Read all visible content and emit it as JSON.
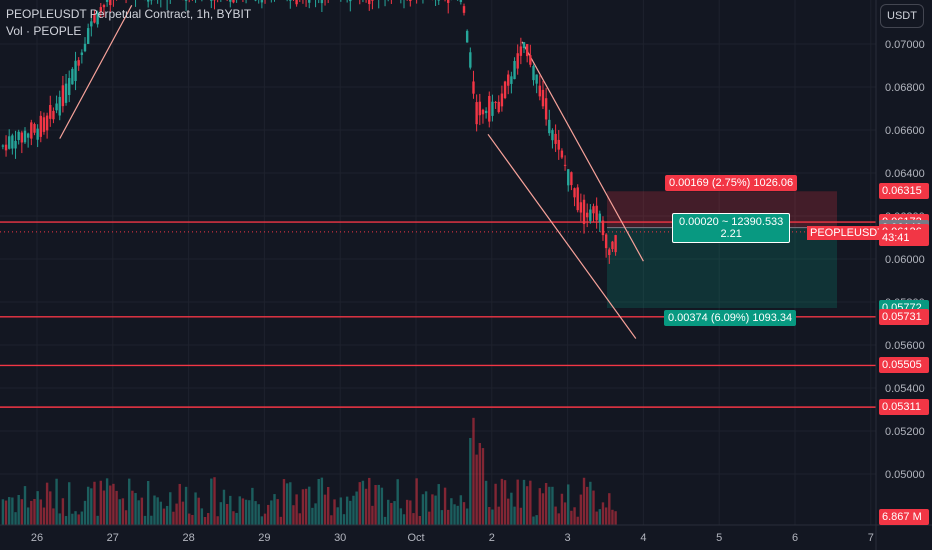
{
  "header": {
    "title": "PEOPLEUSDT Perpetual Contract, 1h, BYBIT",
    "volume_label": "Vol · PEOPLE"
  },
  "currency_button": "USDT",
  "colors": {
    "background": "#131722",
    "up": "#26a69a",
    "down": "#f23645",
    "level_line": "#f23645",
    "channel_line": "#f7a29a",
    "grid": "#1e222d",
    "axis_text": "#b2b5be"
  },
  "chart_data": {
    "type": "candlestick",
    "symbol": "PEOPLEUSDT.P",
    "interval": "1h",
    "x_tick_labels": [
      "26",
      "27",
      "28",
      "29",
      "30",
      "Oct",
      "2",
      "3",
      "4",
      "5",
      "6",
      "7"
    ],
    "y_tick_labels": [
      "0.07000",
      "0.06800",
      "0.06600",
      "0.06400",
      "0.06200",
      "0.06000",
      "0.05800",
      "0.05600",
      "0.05400",
      "0.05200",
      "0.05000"
    ],
    "ylim": [
      0.0489,
      0.0718
    ],
    "y_ticks": [
      0.07,
      0.068,
      0.066,
      0.064,
      0.062,
      0.06,
      0.058,
      0.056,
      0.054,
      0.052,
      0.05
    ],
    "horizontal_levels": [
      0.06172,
      0.05731,
      0.05505,
      0.05311
    ],
    "current_price_dotted": 0.06126,
    "price_tags": [
      {
        "label": "0.06315",
        "value": 0.06315,
        "color": "#f23645"
      },
      {
        "label": "0.06172",
        "value": 0.06172,
        "color": "#f23645"
      },
      {
        "label": "0.06146",
        "value": 0.06146,
        "color": "#787b86"
      },
      {
        "label": "0.06126",
        "value": 0.06126,
        "color": "#f23645"
      },
      {
        "label": "43:41",
        "value": 0.061,
        "color": "#f23645"
      },
      {
        "label": "0.05772",
        "value": 0.05772,
        "color": "#089981"
      },
      {
        "label": "0.05731",
        "value": 0.05731,
        "color": "#f23645"
      },
      {
        "label": "0.05505",
        "value": 0.05505,
        "color": "#f23645"
      },
      {
        "label": "0.05311",
        "value": 0.05311,
        "color": "#f23645"
      }
    ],
    "volume_tag": "6.867 M",
    "ticker_label": "PEOPLEUSDT.P",
    "position": {
      "entry": 0.06146,
      "stop": 0.06315,
      "target": 0.05772,
      "stop_label": "0.00169 (2.75%) 1026.06",
      "center_label_line1": "0.00020 ~ 12390.533",
      "center_label_line2": "2.21",
      "target_label": "0.00374 (6.09%) 1093.34"
    },
    "trend_lines": [
      {
        "name": "early-uptrend",
        "from": [
          0.3,
          0.0656
        ],
        "to": [
          1.25,
          0.0718
        ]
      },
      {
        "name": "channel-upper",
        "from": [
          6.4,
          0.0701
        ],
        "to": [
          8.0,
          0.0599
        ]
      },
      {
        "name": "channel-lower",
        "from": [
          5.95,
          0.0658
        ],
        "to": [
          7.9,
          0.0563
        ]
      }
    ]
  }
}
